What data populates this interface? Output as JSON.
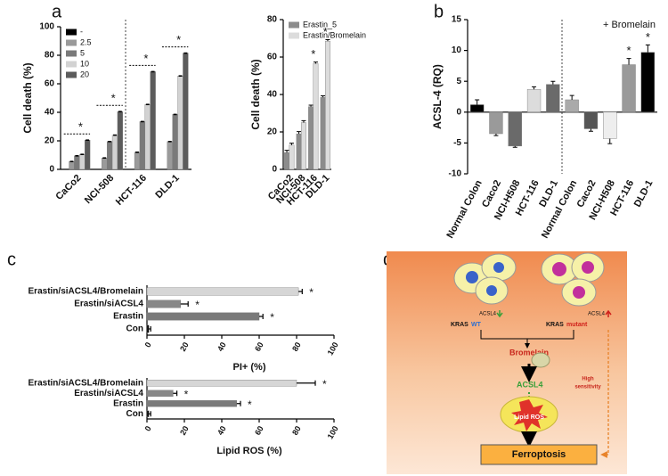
{
  "panel_labels": [
    "a",
    "b",
    "c",
    "d"
  ],
  "chart_data": [
    {
      "type": "bar",
      "y_label": "Cell death (%)",
      "categories": [
        "CaCo2",
        "NCI-508",
        "HCT-116",
        "DLD-1"
      ],
      "series": [
        {
          "name": "-",
          "color": "#000000",
          "values": [
            0,
            0,
            0,
            0
          ]
        },
        {
          "name": "2.5",
          "color": "#9a9a9a",
          "values": [
            5.5,
            8,
            12,
            19.5
          ]
        },
        {
          "name": "5",
          "color": "#7a7a7a",
          "values": [
            9.5,
            19.5,
            33.5,
            38.5
          ]
        },
        {
          "name": "10",
          "color": "#d2d2d2",
          "values": [
            10.5,
            24,
            45.5,
            65.5
          ]
        },
        {
          "name": "20",
          "color": "#5c5c5c",
          "values": [
            20.5,
            40.5,
            68.5,
            81.5
          ]
        }
      ],
      "significance": [
        "*",
        "*",
        "*",
        "*"
      ],
      "ylim": [
        0,
        100
      ],
      "yticks": [
        0,
        20,
        40,
        60,
        80,
        100
      ],
      "legend": "top-left"
    },
    {
      "type": "bar",
      "y_label": "Cell death (%)",
      "categories": [
        "CaCo2",
        "NCI-508",
        "HCT-116",
        "DLD-1"
      ],
      "series": [
        {
          "name": "Erastin_5",
          "color": "#8c8c8c",
          "values": [
            9,
            19,
            33.5,
            38.5
          ],
          "errors": [
            1.2,
            1.2,
            0.8,
            0.8
          ]
        },
        {
          "name": "Erastin/Bromelain",
          "color": "#dcdcdc",
          "values": [
            13,
            25,
            56.5,
            68.5
          ],
          "errors": [
            1,
            1,
            0.8,
            0.8
          ]
        }
      ],
      "significance": [
        null,
        null,
        "*",
        "*"
      ],
      "ylim": [
        0,
        80
      ],
      "yticks": [
        0,
        20,
        40,
        60,
        80
      ],
      "legend": "top-left"
    },
    {
      "type": "bar",
      "y_label": "ACSL-4 (RQ)",
      "annotation": "+ Bromelain",
      "categories": [
        "Normal Colon",
        "Caco2",
        "NCI-H508",
        "HCT-116",
        "DLD-1",
        "Normal Colon",
        "Caco2",
        "NCI-H508",
        "HCT-116",
        "DLD-1"
      ],
      "values": [
        1.2,
        -3.5,
        -5.5,
        3.7,
        4.5,
        2,
        -2.7,
        -4.3,
        7.7,
        9.7
      ],
      "errors": [
        0.8,
        0.3,
        0.2,
        0.4,
        0.5,
        0.7,
        0.4,
        0.8,
        1,
        1.2
      ],
      "colors": [
        "#000000",
        "#9a9a9a",
        "#6a6a6a",
        "#dcdcdc",
        "#6a6a6a",
        "#aaaaaa",
        "#555555",
        "#eeeeee",
        "#9a9a9a",
        "#000000"
      ],
      "significance": [
        null,
        null,
        null,
        null,
        null,
        null,
        null,
        null,
        "*",
        "*"
      ],
      "ylim": [
        -10,
        15
      ],
      "yticks": [
        -10,
        -5,
        0,
        5,
        10,
        15
      ]
    },
    {
      "type": "hbar",
      "x_label": "PI+ (%)",
      "categories": [
        "Con",
        "Erastin",
        "Erastin/siACSL4",
        "Erastin/siACSL4/Bromelain"
      ],
      "values": [
        1,
        60,
        18,
        81
      ],
      "errors": [
        1,
        2,
        4,
        2
      ],
      "colors": [
        "#000000",
        "#7a7a7a",
        "#888888",
        "#d6d6d6"
      ],
      "significance": [
        null,
        "*",
        "*",
        "*"
      ],
      "xlim": [
        0,
        100
      ],
      "xticks": [
        0,
        20,
        40,
        60,
        80,
        100
      ]
    },
    {
      "type": "hbar",
      "x_label": "Lipid ROS (%)",
      "categories": [
        "Con",
        "Erastin",
        "Erastin/siACSL4",
        "Erastin/siACSL4/Bromelain"
      ],
      "values": [
        1,
        48,
        14,
        80
      ],
      "errors": [
        1,
        2,
        2,
        10
      ],
      "colors": [
        "#000000",
        "#7a7a7a",
        "#888888",
        "#d6d6d6"
      ],
      "significance": [
        null,
        "*",
        "*",
        "*"
      ],
      "xlim": [
        0,
        100
      ],
      "xticks": [
        0,
        20,
        40,
        60,
        80,
        100
      ]
    }
  ],
  "diagram": {
    "kras_wt": [
      "KRAS",
      "WT"
    ],
    "kras_mutant": [
      "KRAS",
      "mutant"
    ],
    "acsl4_low": "ACSL4",
    "acsl4_high": "ACSL4",
    "bromelain": "Bromelain",
    "acsl4_mid": "ACSL4",
    "lipid_ros": "Lipid ROS",
    "sensitivity_note": [
      "High",
      "sensitivity"
    ],
    "ferroptosis": "Ferroptosis"
  }
}
